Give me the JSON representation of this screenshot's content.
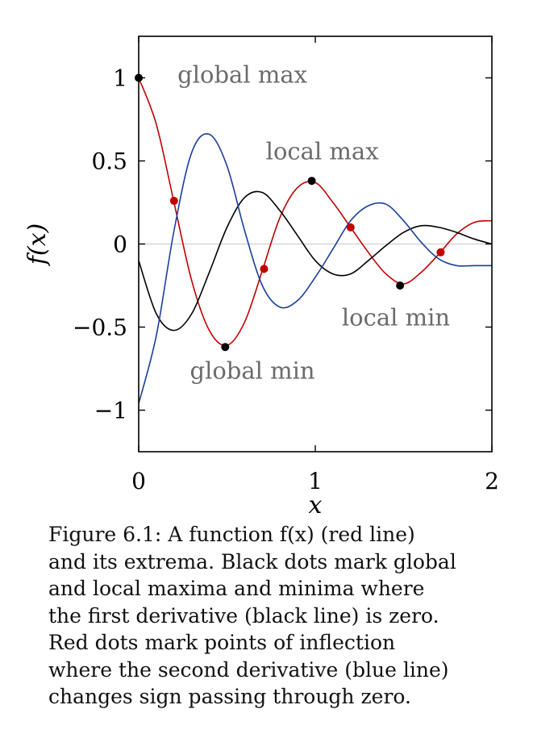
{
  "chart_data": {
    "type": "line",
    "xlabel": "x",
    "ylabel": "f(x)",
    "xlim": [
      0,
      2
    ],
    "ylim": [
      -1.25,
      1.25
    ],
    "x_ticks": [
      0,
      1,
      2
    ],
    "x_tick_labels": [
      "0",
      "1",
      "2"
    ],
    "y_ticks": [
      1,
      0.5,
      0,
      -0.5,
      -1
    ],
    "y_tick_labels": [
      "1",
      "0.5",
      "0",
      "−0.5",
      "−1"
    ],
    "zero_line": true,
    "grid": false,
    "legend": "none",
    "series": [
      {
        "color": "#c00000",
        "x": [
          0,
          0.1,
          0.2,
          0.3,
          0.4,
          0.5,
          0.6,
          0.7,
          0.8,
          0.9,
          1.0,
          1.1,
          1.2,
          1.3,
          1.4,
          1.5,
          1.6,
          1.7,
          1.8,
          1.9,
          2.0
        ],
        "y": [
          1.0,
          0.72,
          0.25,
          -0.22,
          -0.52,
          -0.61,
          -0.47,
          -0.16,
          0.16,
          0.34,
          0.37,
          0.25,
          0.1,
          -0.05,
          -0.18,
          -0.24,
          -0.17,
          -0.06,
          0.06,
          0.13,
          0.14
        ]
      },
      {
        "color": "#000000",
        "x": [
          0,
          0.1,
          0.2,
          0.3,
          0.4,
          0.5,
          0.6,
          0.7,
          0.8,
          0.9,
          1.0,
          1.1,
          1.2,
          1.3,
          1.4,
          1.5,
          1.6,
          1.7,
          1.8,
          1.9,
          2.0
        ],
        "y": [
          -0.1,
          -0.42,
          -0.52,
          -0.42,
          -0.17,
          0.1,
          0.28,
          0.31,
          0.2,
          0.05,
          -0.1,
          -0.18,
          -0.18,
          -0.1,
          -0.01,
          0.07,
          0.11,
          0.1,
          0.07,
          0.03,
          0.0
        ]
      },
      {
        "color": "#1a3f9e",
        "x": [
          0,
          0.1,
          0.2,
          0.3,
          0.4,
          0.5,
          0.6,
          0.7,
          0.8,
          0.9,
          1.0,
          1.1,
          1.2,
          1.3,
          1.4,
          1.5,
          1.6,
          1.7,
          1.8,
          1.9,
          2.0
        ],
        "y": [
          -0.96,
          -0.55,
          0.08,
          0.55,
          0.66,
          0.47,
          0.08,
          -0.25,
          -0.38,
          -0.34,
          -0.2,
          -0.03,
          0.14,
          0.23,
          0.24,
          0.14,
          0.01,
          -0.09,
          -0.13,
          -0.13,
          -0.13
        ]
      }
    ],
    "extrema_points": [
      {
        "x": 0.0,
        "y": 1.0
      },
      {
        "x": 0.49,
        "y": -0.62
      },
      {
        "x": 0.98,
        "y": 0.38
      },
      {
        "x": 1.48,
        "y": -0.25
      }
    ],
    "inflection_points": [
      {
        "x": 0.2,
        "y": 0.26
      },
      {
        "x": 0.71,
        "y": -0.15
      },
      {
        "x": 1.2,
        "y": 0.1
      },
      {
        "x": 1.71,
        "y": -0.05
      }
    ],
    "annotations": [
      {
        "text": "global max",
        "x": 0.22,
        "y": 0.97
      },
      {
        "text": "local max",
        "x": 0.72,
        "y": 0.51
      },
      {
        "text": "local min",
        "x": 1.15,
        "y": -0.49
      },
      {
        "text": "global min",
        "x": 0.29,
        "y": -0.81
      }
    ]
  },
  "caption": "Figure 6.1: A function f(x) (red line)\nand its extrema. Black dots mark global\nand local maxima and minima where\nthe first derivative (black line) is zero.\nRed dots mark points of inflection\nwhere the second derivative (blue line)\nchanges sign passing through zero."
}
